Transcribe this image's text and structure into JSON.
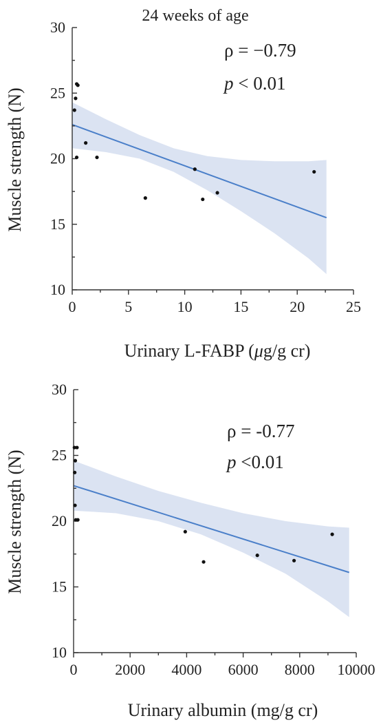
{
  "colors": {
    "fit_line": "#4a7fc9",
    "band": "#dbe3f2",
    "point": "#111111",
    "axis": "#333333"
  },
  "chart_data": [
    {
      "type": "scatter",
      "title": "24 weeks of age",
      "xlabel": "Urinary L-FABP",
      "xlabel_unit_italic": "μ",
      "xlabel_unit_rest": "g/g cr",
      "ylabel": "Muscle strength  (N)",
      "xlim": [
        0,
        25
      ],
      "ylim": [
        10,
        30
      ],
      "x_ticks": [
        0,
        5,
        10,
        15,
        20,
        25
      ],
      "x_tick_labels": [
        "0",
        "5",
        "10",
        "15",
        "20",
        "25"
      ],
      "y_ticks": [
        10,
        15,
        20,
        25,
        30
      ],
      "y_tick_labels": [
        "10",
        "15",
        "20",
        "25",
        "30"
      ],
      "stat_rho": "ρ = −0.79",
      "stat_p_symbol": "p",
      "stat_p_rest": " < 0.01",
      "points": [
        {
          "x": 0.2,
          "y": 23.7
        },
        {
          "x": 0.3,
          "y": 24.6
        },
        {
          "x": 0.4,
          "y": 25.7
        },
        {
          "x": 0.5,
          "y": 25.6
        },
        {
          "x": 0.4,
          "y": 20.1
        },
        {
          "x": 1.2,
          "y": 21.2
        },
        {
          "x": 2.2,
          "y": 20.1
        },
        {
          "x": 6.5,
          "y": 17.0
        },
        {
          "x": 10.9,
          "y": 19.2
        },
        {
          "x": 11.6,
          "y": 16.9
        },
        {
          "x": 12.9,
          "y": 17.4
        },
        {
          "x": 21.5,
          "y": 19.0
        }
      ],
      "fit": {
        "x": [
          0,
          22.6
        ],
        "y": [
          22.6,
          15.5
        ]
      },
      "band": {
        "x": [
          0,
          3,
          6,
          9,
          12,
          15,
          18,
          21,
          22.6
        ],
        "upper": [
          24.3,
          23.0,
          21.8,
          20.8,
          20.2,
          19.9,
          19.8,
          19.8,
          19.9
        ],
        "lower": [
          20.8,
          20.5,
          20.0,
          19.0,
          17.6,
          16.0,
          14.3,
          12.4,
          11.2
        ]
      }
    },
    {
      "type": "scatter",
      "title": "",
      "xlabel": "Urinary albumin (mg/g cr)",
      "ylabel": "Muscle strength  (N)",
      "xlim": [
        0,
        10000
      ],
      "ylim": [
        10,
        30
      ],
      "x_ticks": [
        0,
        2000,
        4000,
        6000,
        8000,
        10000
      ],
      "x_tick_labels": [
        "0",
        "2000",
        "4000",
        "6000",
        "8000",
        "10000"
      ],
      "y_ticks": [
        10,
        15,
        20,
        25,
        30
      ],
      "y_tick_labels": [
        "10",
        "15",
        "20",
        "25",
        "30"
      ],
      "stat_rho": "ρ  =  -0.77",
      "stat_p_symbol": "p",
      "stat_p_rest": " <0.01",
      "points": [
        {
          "x": 30,
          "y": 25.6
        },
        {
          "x": 60,
          "y": 24.6
        },
        {
          "x": 40,
          "y": 23.7
        },
        {
          "x": 50,
          "y": 21.2
        },
        {
          "x": 80,
          "y": 20.1
        },
        {
          "x": 150,
          "y": 20.1
        },
        {
          "x": 120,
          "y": 25.6
        },
        {
          "x": 3950,
          "y": 19.2
        },
        {
          "x": 4600,
          "y": 16.9
        },
        {
          "x": 6500,
          "y": 17.4
        },
        {
          "x": 7800,
          "y": 17.0
        },
        {
          "x": 9150,
          "y": 19.0
        }
      ],
      "fit": {
        "x": [
          0,
          9750
        ],
        "y": [
          22.7,
          16.1
        ]
      },
      "band": {
        "x": [
          0,
          1500,
          3000,
          4500,
          6000,
          7500,
          9000,
          9750
        ],
        "upper": [
          24.6,
          23.4,
          22.3,
          21.4,
          20.6,
          20.0,
          19.6,
          19.5
        ],
        "lower": [
          20.8,
          20.6,
          20.0,
          19.0,
          17.6,
          16.0,
          13.9,
          12.7
        ]
      }
    }
  ]
}
